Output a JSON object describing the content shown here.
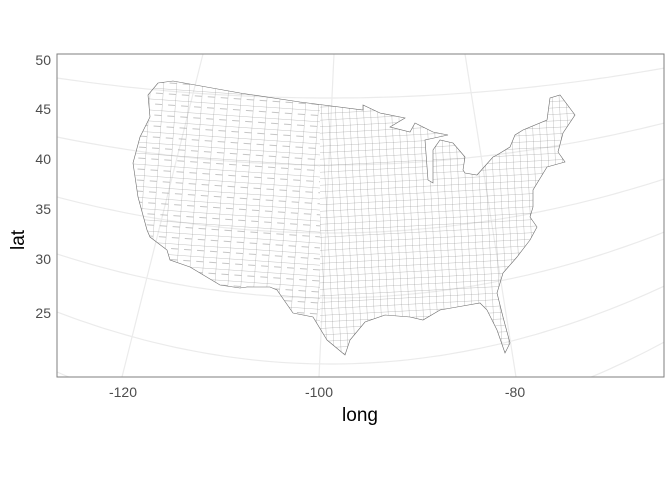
{
  "chart_data": {
    "type": "map",
    "xlabel": "long",
    "ylabel": "lat",
    "x_ticks": [
      "-120",
      "-100",
      "-80"
    ],
    "y_ticks": [
      "50",
      "45",
      "40",
      "35",
      "30",
      "25"
    ],
    "graticule_longitudes": [
      -120,
      -100,
      -80
    ],
    "graticule_latitudes": [
      45,
      40,
      35,
      30,
      25,
      20
    ],
    "features": "US county boundaries (contiguous states)",
    "grid": true,
    "fill_color": "#ffffff",
    "border_color": "#4d4d4d",
    "grid_color": "#ebebeb",
    "panel_border_color": "#7f7f7f"
  }
}
